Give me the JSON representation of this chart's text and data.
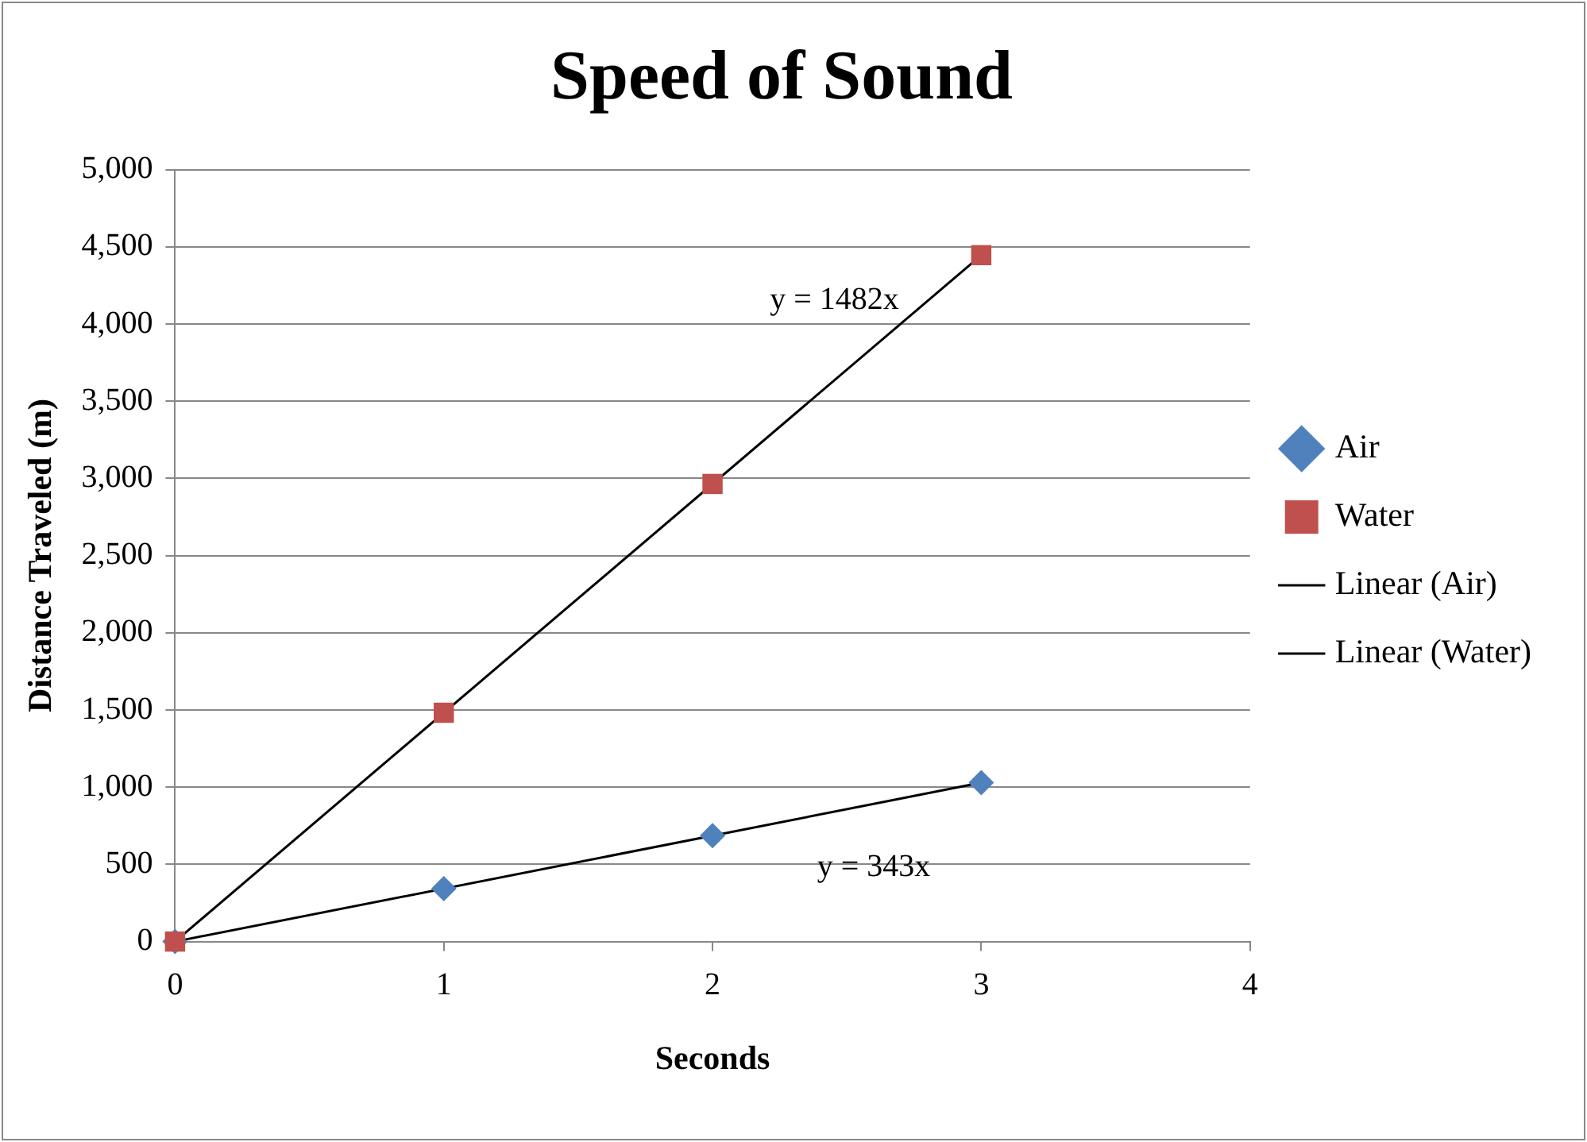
{
  "chart_data": {
    "type": "scatter",
    "title": "Speed of Sound",
    "xlabel": "Seconds",
    "ylabel": "Distance Traveled (m)",
    "xlim": [
      0,
      4
    ],
    "xticks": [
      0,
      1,
      2,
      3,
      4
    ],
    "ylim": [
      0,
      5000
    ],
    "yticks": [
      0,
      {
        "value": 500,
        "label": "500"
      },
      {
        "value": 1000,
        "label": "1,000"
      },
      {
        "value": 1500,
        "label": "1,500"
      },
      {
        "value": 2000,
        "label": "2,000"
      },
      {
        "value": 2500,
        "label": "2,500"
      },
      {
        "value": 3000,
        "label": "3,000"
      },
      {
        "value": 3500,
        "label": "3,500"
      },
      {
        "value": 4000,
        "label": "4,000"
      },
      {
        "value": 4500,
        "label": "4,500"
      },
      {
        "value": 5000,
        "label": "5,000"
      }
    ],
    "grid": "y",
    "legend": "right",
    "series": [
      {
        "name": "Air",
        "type": "scatter",
        "marker": "diamond",
        "color": "#4f81bd",
        "x": [
          0,
          1,
          2,
          3
        ],
        "values": [
          0,
          343,
          686,
          1029
        ]
      },
      {
        "name": "Water",
        "type": "scatter",
        "marker": "square",
        "color": "#c0504d",
        "x": [
          0,
          1,
          2,
          3
        ],
        "values": [
          0,
          1482,
          2964,
          4446
        ]
      },
      {
        "name": "Linear (Air)",
        "type": "line",
        "marker": "none",
        "color": "#000000",
        "x": [
          0,
          3
        ],
        "values": [
          0,
          1029
        ]
      },
      {
        "name": "Linear (Water)",
        "type": "line",
        "marker": "none",
        "color": "#000000",
        "x": [
          0,
          3
        ],
        "values": [
          0,
          4446
        ]
      }
    ],
    "annotations": [
      {
        "text": "y = 1482x",
        "x": 2.8,
        "y": 4150
      },
      {
        "text": "y = 343x",
        "x": 2.6,
        "y": 890
      }
    ]
  }
}
